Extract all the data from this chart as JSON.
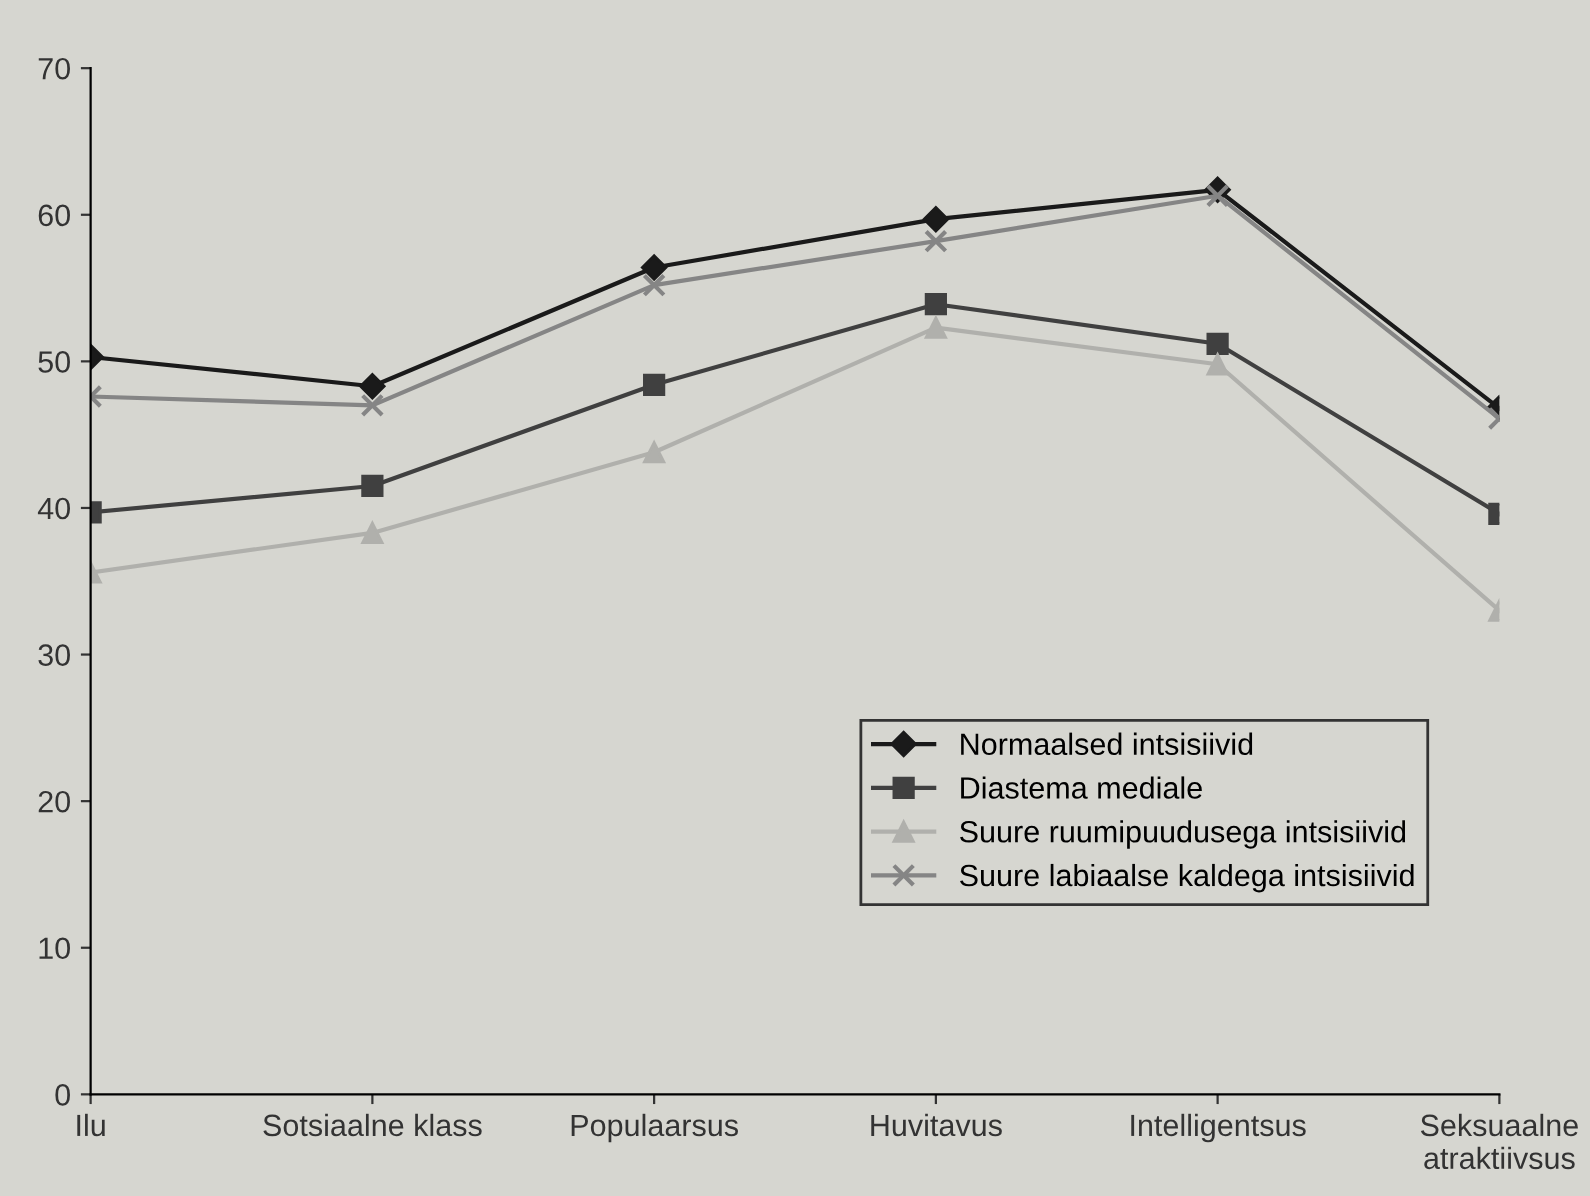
{
  "chart_data": {
    "type": "line",
    "categories": [
      "Ilu",
      "Sotsiaalne klass",
      "Populaarsus",
      "Huvitavus",
      "Intelligentsus",
      "Seksuaalne\natraktiivsus"
    ],
    "series": [
      {
        "name": "Normaalsed intsisiivid",
        "color": "#1a1a1a",
        "marker": "diamond",
        "values": [
          50.3,
          48.3,
          56.4,
          59.7,
          61.7,
          46.8
        ]
      },
      {
        "name": "Diastema mediale",
        "color": "#404040",
        "marker": "square",
        "values": [
          39.7,
          41.5,
          48.4,
          53.9,
          51.2,
          39.6
        ]
      },
      {
        "name": "Suure ruumipuudusega intsisiivid",
        "color": "#b0b0ac",
        "marker": "triangle",
        "values": [
          35.6,
          38.3,
          43.8,
          52.3,
          49.8,
          33.0
        ]
      },
      {
        "name": "Suure labiaalse kaldega intsisiivid",
        "color": "#858585",
        "marker": "cross",
        "values": [
          47.6,
          47.0,
          55.2,
          58.2,
          61.3,
          46.1
        ]
      }
    ],
    "ylim": [
      0,
      70
    ],
    "yticks": [
      0,
      10,
      20,
      30,
      40,
      50,
      60,
      70
    ],
    "grid": false,
    "legend": "lower right",
    "line_style": "solid"
  }
}
